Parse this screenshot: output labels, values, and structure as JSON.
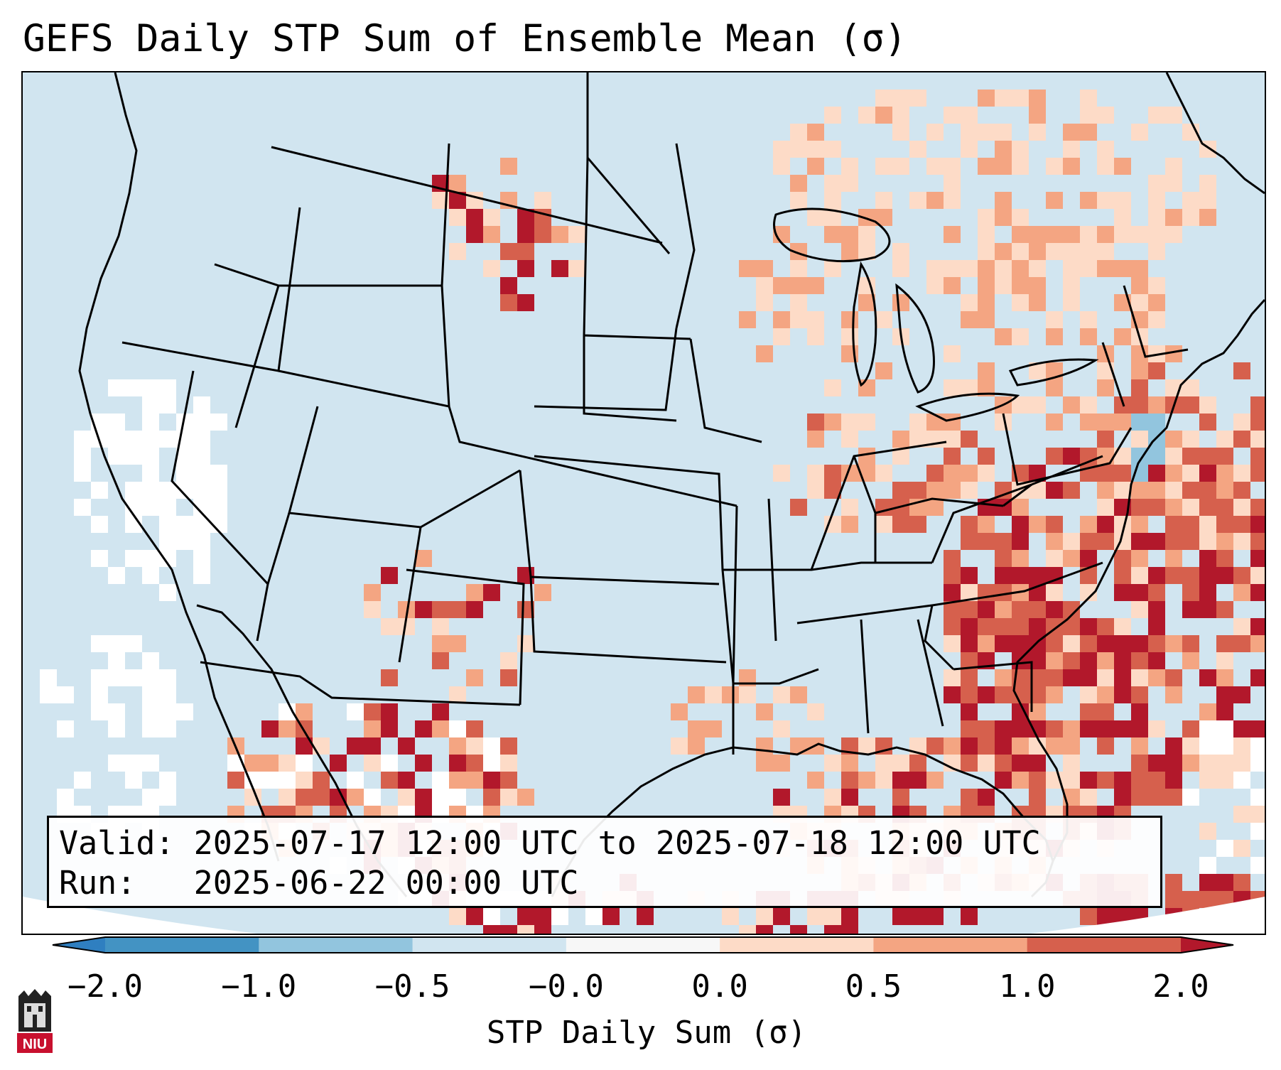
{
  "title": "GEFS Daily STP Sum of Ensemble Mean (σ)",
  "info": {
    "valid_label": "Valid:",
    "valid_value": "2025-07-17 12:00 UTC to 2025-07-18 12:00 UTC",
    "run_label": "Run:",
    "run_value": "2025-06-22 00:00 UTC"
  },
  "colorbar": {
    "label": "STP Daily Sum (σ)",
    "ticks": [
      "−2.0",
      "−1.0",
      "−0.5",
      "−0.0",
      "0.0",
      "0.5",
      "1.0",
      "2.0"
    ],
    "segments": [
      {
        "from": "< -2.0",
        "color": "#2f7fc0"
      },
      {
        "from": "-2.0 to -1.0",
        "color": "#4393c3"
      },
      {
        "from": "-1.0 to -0.5",
        "color": "#92c5de"
      },
      {
        "from": "-0.5 to -0.0",
        "color": "#d1e5f0"
      },
      {
        "from": "-0.0 to 0.0",
        "color": "#f7f7f7"
      },
      {
        "from": "0.0 to 0.5",
        "color": "#fddbc7"
      },
      {
        "from": "0.5 to 1.0",
        "color": "#f4a582"
      },
      {
        "from": "1.0 to 2.0",
        "color": "#d6604d"
      },
      {
        "from": "> 2.0",
        "color": "#b2182b"
      }
    ]
  },
  "map": {
    "region": "CONUS",
    "background_color": "#d1e5f0"
  },
  "logo": {
    "text": "NIU",
    "color": "#c8102e"
  }
}
